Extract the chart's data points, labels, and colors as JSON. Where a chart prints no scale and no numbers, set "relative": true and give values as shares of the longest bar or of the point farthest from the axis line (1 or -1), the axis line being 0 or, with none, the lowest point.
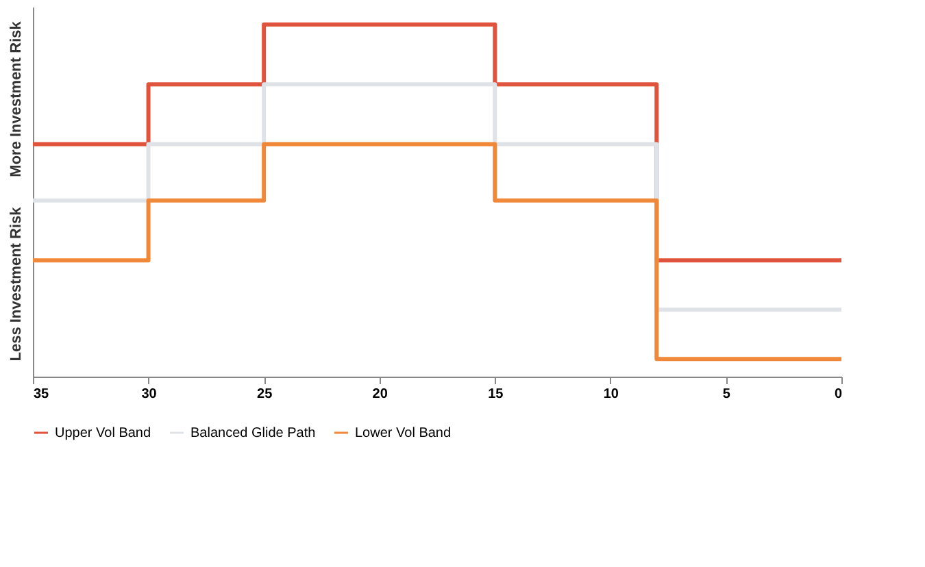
{
  "chart_data": {
    "type": "step",
    "relative": true,
    "x": [
      35,
      30,
      25,
      15,
      8,
      0
    ],
    "xlim": [
      35,
      0
    ],
    "xticks": [
      35,
      30,
      25,
      20,
      15,
      10,
      5,
      0
    ],
    "series": [
      {
        "name": "Upper Vol Band",
        "color": "#e0533c",
        "values": [
          0.66,
          0.83,
          1,
          0.83,
          0.33,
          0.33
        ]
      },
      {
        "name": "Balanced Glide Path",
        "color": "#dfe3e8",
        "values": [
          0.5,
          0.66,
          0.83,
          0.66,
          0.19,
          0.19
        ]
      },
      {
        "name": "Lower Vol Band",
        "color": "#f0883a",
        "values": [
          0.33,
          0.5,
          0.66,
          0.5,
          0.05,
          0.05
        ]
      }
    ],
    "annotations": [
      "More Investment Risk",
      "Less Investment Risk"
    ],
    "legend": "bottom",
    "grid": false
  }
}
